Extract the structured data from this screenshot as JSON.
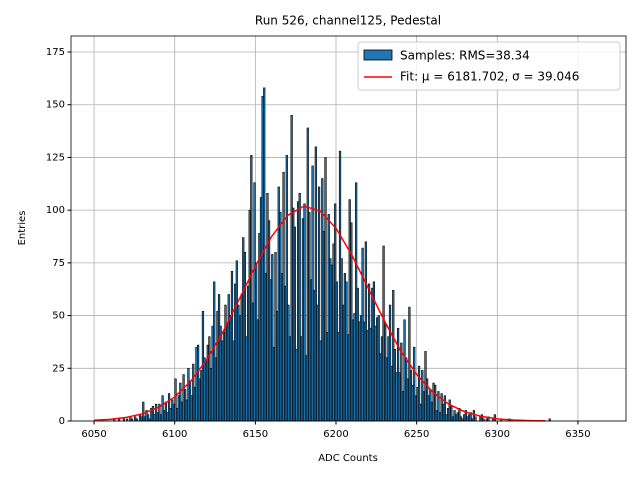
{
  "chart_data": {
    "type": "histogram",
    "title": "Run 526, channel125, Pedestal",
    "xlabel": "ADC Counts",
    "ylabel": "Entries",
    "bins": [
      6050,
      6051,
      6052,
      6053,
      6054,
      6055,
      6056,
      6057,
      6058,
      6059,
      6060,
      6061,
      6062,
      6063,
      6064,
      6065,
      6066,
      6067,
      6068,
      6069,
      6070,
      6071,
      6072,
      6073,
      6074,
      6075,
      6076,
      6077,
      6078,
      6079,
      6080,
      6081,
      6082,
      6083,
      6084,
      6085,
      6086,
      6087,
      6088,
      6089,
      6090,
      6091,
      6092,
      6093,
      6094,
      6095,
      6096,
      6097,
      6098,
      6099,
      6100,
      6101,
      6102,
      6103,
      6104,
      6105,
      6106,
      6107,
      6108,
      6109,
      6110,
      6111,
      6112,
      6113,
      6114,
      6115,
      6116,
      6117,
      6118,
      6119,
      6120,
      6121,
      6122,
      6123,
      6124,
      6125,
      6126,
      6127,
      6128,
      6129,
      6130,
      6131,
      6132,
      6133,
      6134,
      6135,
      6136,
      6137,
      6138,
      6139,
      6140,
      6141,
      6142,
      6143,
      6144,
      6145,
      6146,
      6147,
      6148,
      6149,
      6150,
      6151,
      6152,
      6153,
      6154,
      6155,
      6156,
      6157,
      6158,
      6159,
      6160,
      6161,
      6162,
      6163,
      6164,
      6165,
      6166,
      6167,
      6168,
      6169,
      6170,
      6171,
      6172,
      6173,
      6174,
      6175,
      6176,
      6177,
      6178,
      6179,
      6180,
      6181,
      6182,
      6183,
      6184,
      6185,
      6186,
      6187,
      6188,
      6189,
      6190,
      6191,
      6192,
      6193,
      6194,
      6195,
      6196,
      6197,
      6198,
      6199,
      6200,
      6201,
      6202,
      6203,
      6204,
      6205,
      6206,
      6207,
      6208,
      6209,
      6210,
      6211,
      6212,
      6213,
      6214,
      6215,
      6216,
      6217,
      6218,
      6219,
      6220,
      6221,
      6222,
      6223,
      6224,
      6225,
      6226,
      6227,
      6228,
      6229,
      6230,
      6231,
      6232,
      6233,
      6234,
      6235,
      6236,
      6237,
      6238,
      6239,
      6240,
      6241,
      6242,
      6243,
      6244,
      6245,
      6246,
      6247,
      6248,
      6249,
      6250,
      6251,
      6252,
      6253,
      6254,
      6255,
      6256,
      6257,
      6258,
      6259,
      6260,
      6261,
      6262,
      6263,
      6264,
      6265,
      6266,
      6267,
      6268,
      6269,
      6270,
      6271,
      6272,
      6273,
      6274,
      6275,
      6276,
      6277,
      6278,
      6279,
      6280,
      6281,
      6282,
      6283,
      6284,
      6285,
      6286,
      6287,
      6288,
      6289,
      6290,
      6291,
      6292,
      6293,
      6294,
      6295,
      6296,
      6297,
      6298,
      6299,
      6300,
      6301,
      6302,
      6303,
      6304,
      6305,
      6306,
      6307,
      6308,
      6309,
      6310,
      6311,
      6312,
      6313,
      6314,
      6315,
      6316,
      6317,
      6318,
      6319,
      6320,
      6321,
      6322,
      6323,
      6324,
      6325,
      6326,
      6327,
      6328,
      6329,
      6330,
      6331,
      6332,
      6333,
      6334
    ],
    "series": [
      {
        "name": "Samples: RMS=38.34",
        "color": "#1f77b4",
        "values": [
          0,
          0,
          0,
          0,
          0,
          0,
          0,
          0,
          0,
          0,
          0,
          0,
          1,
          0,
          0,
          1,
          0,
          0,
          1,
          0,
          1,
          0,
          2,
          1,
          0,
          2,
          1,
          0,
          3,
          2,
          9,
          2,
          5,
          3,
          1,
          6,
          7,
          3,
          8,
          4,
          8,
          3,
          12,
          5,
          9,
          4,
          13,
          6,
          10,
          8,
          20,
          6,
          12,
          18,
          9,
          22,
          15,
          10,
          25,
          19,
          12,
          27,
          16,
          35,
          36,
          20,
          24,
          52,
          30,
          28,
          36,
          40,
          25,
          45,
          66,
          30,
          52,
          60,
          45,
          38,
          42,
          55,
          46,
          60,
          50,
          71,
          38,
          65,
          76,
          55,
          50,
          60,
          87,
          80,
          40,
          64,
          100,
          126,
          56,
          113,
          75,
          48,
          89,
          106,
          154,
          158,
          70,
          108,
          95,
          67,
          79,
          35,
          80,
          52,
          111,
          99,
          70,
          118,
          64,
          126,
          55,
          40,
          145,
          101,
          92,
          34,
          104,
          108,
          40,
          96,
          103,
          31,
          139,
          99,
          67,
          121,
          62,
          130,
          55,
          111,
          38,
          115,
          90,
          125,
          42,
          98,
          77,
          74,
          84,
          103,
          66,
          42,
          128,
          77,
          55,
          70,
          66,
          41,
          105,
          94,
          48,
          51,
          113,
          63,
          47,
          50,
          82,
          47,
          85,
          43,
          65,
          44,
          63,
          66,
          45,
          49,
          50,
          32,
          40,
          83,
          46,
          30,
          40,
          55,
          26,
          62,
          34,
          23,
          44,
          23,
          37,
          14,
          48,
          30,
          20,
          54,
          24,
          17,
          35,
          12,
          16,
          26,
          8,
          24,
          14,
          33,
          20,
          12,
          15,
          9,
          18,
          17,
          5,
          14,
          4,
          13,
          8,
          12,
          3,
          6,
          10,
          7,
          2,
          5,
          3,
          4,
          6,
          2,
          1,
          3,
          5,
          2,
          3,
          4,
          1,
          5,
          2,
          0,
          0,
          2,
          3,
          1,
          0,
          1,
          2,
          0,
          0,
          1,
          3,
          0,
          0,
          0,
          1,
          0,
          0,
          0,
          0,
          1,
          0,
          0,
          0,
          0,
          0,
          0,
          0,
          0,
          0,
          0,
          0,
          0,
          0,
          0,
          0,
          0,
          0,
          0,
          0,
          0,
          0,
          0,
          0,
          0,
          1,
          0
        ]
      }
    ],
    "fit": {
      "name": "Fit: μ = 6181.702, σ = 39.046",
      "color": "#ff0000",
      "x": [
        6050,
        6060,
        6070,
        6080,
        6090,
        6100,
        6110,
        6120,
        6130,
        6140,
        6150,
        6160,
        6170,
        6180,
        6190,
        6200,
        6210,
        6220,
        6230,
        6240,
        6250,
        6260,
        6270,
        6280,
        6290,
        6300,
        6310,
        6320,
        6330
      ],
      "y": [
        0.35,
        0.79,
        1.7,
        3.4,
        6.5,
        11.4,
        18.9,
        29.3,
        42.4,
        57.7,
        73.4,
        87.4,
        97.5,
        101.9,
        99.7,
        91.4,
        78.5,
        63.0,
        47.5,
        33.4,
        22.1,
        13.7,
        7.9,
        4.3,
        2.2,
        1.0,
        0.46,
        0.19,
        0.07
      ]
    },
    "xlim": [
      6035.7,
      6379.8
    ],
    "ylim": [
      0,
      182.6
    ],
    "xticks": [
      6050,
      6100,
      6150,
      6200,
      6250,
      6300,
      6350
    ],
    "yticks": [
      0,
      25,
      50,
      75,
      100,
      125,
      150,
      175
    ],
    "grid": true,
    "legend": "upper right"
  }
}
